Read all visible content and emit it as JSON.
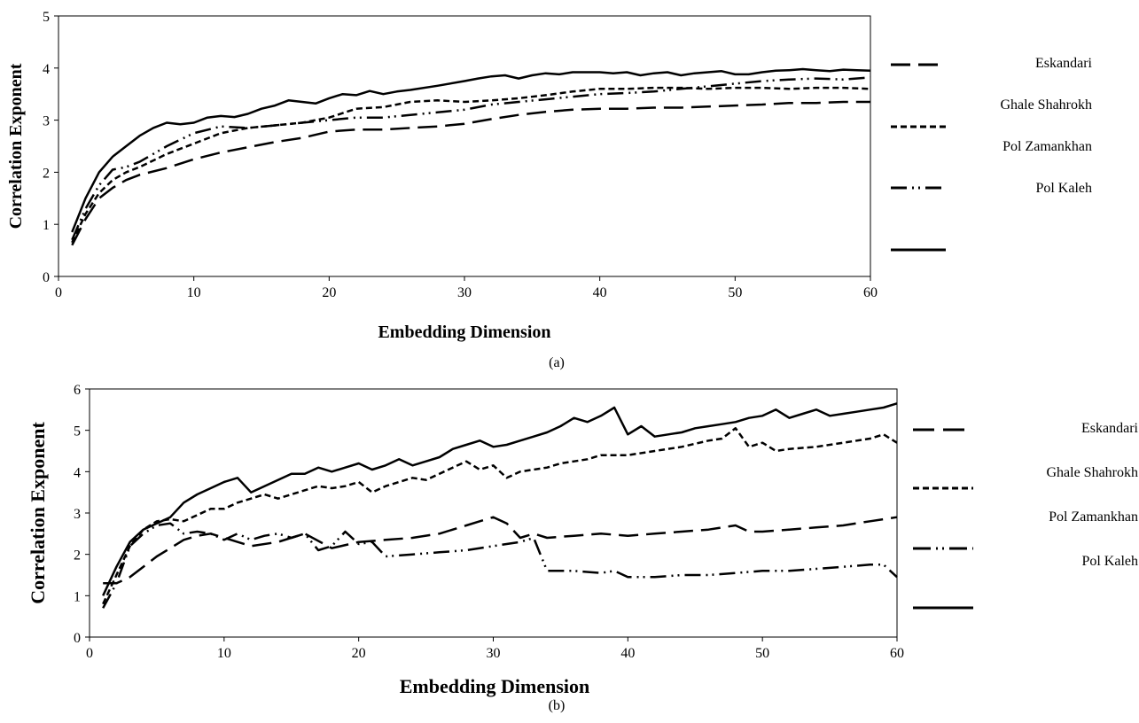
{
  "chart_data": [
    {
      "type": "line",
      "caption": "(a)",
      "xlabel": "Embedding Dimension",
      "ylabel": "Correlation Exponent",
      "xlim": [
        0,
        60
      ],
      "ylim": [
        0,
        5
      ],
      "xticks": [
        0,
        10,
        20,
        30,
        40,
        50,
        60
      ],
      "yticks": [
        0,
        1,
        2,
        3,
        4,
        5
      ],
      "grid": false,
      "legend_position": "right",
      "legend_labels": [
        "Eskandari",
        "Ghale Shahrokh",
        "Pol Zamankhan",
        "Pol Kaleh"
      ],
      "series": [
        {
          "style": "long-dash",
          "x": [
            1,
            2,
            3,
            4,
            5,
            6,
            8,
            10,
            12,
            14,
            16,
            18,
            20,
            22,
            24,
            26,
            28,
            30,
            32,
            34,
            36,
            38,
            40,
            42,
            44,
            46,
            48,
            50,
            52,
            54,
            56,
            58,
            60
          ],
          "y": [
            0.6,
            1.1,
            1.5,
            1.7,
            1.85,
            1.95,
            2.08,
            2.25,
            2.38,
            2.48,
            2.58,
            2.66,
            2.78,
            2.82,
            2.82,
            2.85,
            2.88,
            2.93,
            3.02,
            3.1,
            3.16,
            3.2,
            3.22,
            3.22,
            3.24,
            3.24,
            3.26,
            3.28,
            3.3,
            3.33,
            3.33,
            3.35,
            3.35
          ]
        },
        {
          "style": "short-dash",
          "x": [
            1,
            2,
            3,
            4,
            5,
            6,
            8,
            10,
            12,
            14,
            16,
            18,
            20,
            22,
            24,
            26,
            28,
            30,
            32,
            34,
            36,
            38,
            40,
            42,
            44,
            46,
            48,
            50,
            52,
            54,
            56,
            58,
            60
          ],
          "y": [
            0.65,
            1.2,
            1.6,
            1.85,
            2.0,
            2.1,
            2.35,
            2.55,
            2.75,
            2.85,
            2.9,
            2.95,
            3.05,
            3.22,
            3.25,
            3.35,
            3.38,
            3.35,
            3.38,
            3.42,
            3.48,
            3.55,
            3.6,
            3.6,
            3.62,
            3.62,
            3.6,
            3.62,
            3.62,
            3.6,
            3.62,
            3.62,
            3.6
          ]
        },
        {
          "style": "dash-dot-dot",
          "x": [
            1,
            2,
            3,
            4,
            5,
            6,
            7,
            8,
            10,
            12,
            14,
            16,
            18,
            20,
            22,
            24,
            26,
            28,
            30,
            32,
            34,
            36,
            38,
            40,
            42,
            44,
            46,
            48,
            50,
            52,
            54,
            56,
            58,
            60
          ],
          "y": [
            0.7,
            1.3,
            1.75,
            2.05,
            2.1,
            2.2,
            2.35,
            2.5,
            2.75,
            2.88,
            2.85,
            2.9,
            2.95,
            3.0,
            3.05,
            3.05,
            3.1,
            3.15,
            3.2,
            3.3,
            3.35,
            3.4,
            3.45,
            3.5,
            3.52,
            3.55,
            3.6,
            3.65,
            3.7,
            3.75,
            3.78,
            3.8,
            3.78,
            3.82
          ]
        },
        {
          "style": "solid",
          "x": [
            1,
            2,
            3,
            4,
            5,
            6,
            7,
            8,
            9,
            10,
            11,
            12,
            13,
            14,
            15,
            16,
            17,
            18,
            19,
            20,
            21,
            22,
            23,
            24,
            25,
            26,
            28,
            30,
            31,
            32,
            33,
            34,
            35,
            36,
            37,
            38,
            39,
            40,
            41,
            42,
            43,
            44,
            45,
            46,
            47,
            48,
            49,
            50,
            51,
            52,
            53,
            54,
            55,
            56,
            57,
            58,
            59,
            60
          ],
          "y": [
            0.85,
            1.5,
            2.0,
            2.3,
            2.5,
            2.7,
            2.85,
            2.95,
            2.92,
            2.95,
            3.05,
            3.08,
            3.06,
            3.12,
            3.22,
            3.28,
            3.38,
            3.35,
            3.32,
            3.42,
            3.5,
            3.48,
            3.56,
            3.5,
            3.55,
            3.58,
            3.66,
            3.75,
            3.8,
            3.84,
            3.86,
            3.8,
            3.86,
            3.9,
            3.88,
            3.92,
            3.92,
            3.92,
            3.9,
            3.92,
            3.86,
            3.9,
            3.92,
            3.86,
            3.9,
            3.92,
            3.94,
            3.88,
            3.88,
            3.92,
            3.95,
            3.96,
            3.98,
            3.96,
            3.94,
            3.97,
            3.96,
            3.95
          ]
        }
      ]
    },
    {
      "type": "line",
      "caption": "(b)",
      "xlabel": "Embedding Dimension",
      "ylabel": "Correlation Exponent",
      "xlim": [
        0,
        60
      ],
      "ylim": [
        0,
        6
      ],
      "xticks": [
        0,
        10,
        20,
        30,
        40,
        50,
        60
      ],
      "yticks": [
        0,
        1,
        2,
        3,
        4,
        5,
        6
      ],
      "grid": false,
      "legend_position": "right",
      "legend_labels": [
        "Eskandari",
        "Ghale Shahrokh",
        "Pol Zamankhan",
        "Pol Kaleh"
      ],
      "series": [
        {
          "style": "long-dash",
          "x": [
            1,
            2,
            3,
            4,
            5,
            6,
            7,
            8,
            9,
            10,
            12,
            14,
            16,
            18,
            20,
            22,
            24,
            26,
            28,
            29,
            30,
            31,
            32,
            33,
            34,
            36,
            38,
            40,
            42,
            44,
            46,
            48,
            49,
            50,
            52,
            54,
            56,
            58,
            60
          ],
          "y": [
            1.3,
            1.3,
            1.45,
            1.7,
            1.95,
            2.15,
            2.35,
            2.45,
            2.5,
            2.4,
            2.2,
            2.3,
            2.5,
            2.15,
            2.3,
            2.35,
            2.4,
            2.5,
            2.7,
            2.8,
            2.9,
            2.75,
            2.4,
            2.5,
            2.4,
            2.45,
            2.5,
            2.45,
            2.5,
            2.55,
            2.6,
            2.7,
            2.55,
            2.55,
            2.6,
            2.65,
            2.7,
            2.8,
            2.9
          ]
        },
        {
          "style": "short-dash",
          "x": [
            1,
            2,
            3,
            4,
            5,
            6,
            7,
            8,
            9,
            10,
            11,
            12,
            13,
            14,
            15,
            16,
            17,
            18,
            19,
            20,
            21,
            22,
            23,
            24,
            25,
            26,
            27,
            28,
            29,
            30,
            31,
            32,
            33,
            34,
            35,
            36,
            37,
            38,
            40,
            42,
            44,
            46,
            47,
            48,
            49,
            50,
            51,
            52,
            54,
            56,
            58,
            59,
            60
          ],
          "y": [
            0.8,
            1.5,
            2.2,
            2.6,
            2.8,
            2.85,
            2.8,
            2.95,
            3.1,
            3.1,
            3.25,
            3.35,
            3.45,
            3.35,
            3.45,
            3.55,
            3.65,
            3.6,
            3.65,
            3.75,
            3.5,
            3.65,
            3.75,
            3.85,
            3.8,
            3.95,
            4.1,
            4.25,
            4.05,
            4.15,
            3.85,
            4.0,
            4.05,
            4.1,
            4.2,
            4.25,
            4.3,
            4.4,
            4.4,
            4.5,
            4.6,
            4.75,
            4.8,
            5.05,
            4.6,
            4.7,
            4.5,
            4.55,
            4.6,
            4.7,
            4.8,
            4.9,
            4.7
          ]
        },
        {
          "style": "dash-dot-dot",
          "x": [
            1,
            2,
            3,
            4,
            5,
            6,
            7,
            8,
            9,
            10,
            11,
            12,
            13,
            14,
            15,
            16,
            17,
            18,
            19,
            20,
            21,
            22,
            24,
            26,
            28,
            30,
            32,
            33,
            34,
            35,
            36,
            38,
            39,
            40,
            42,
            44,
            46,
            48,
            50,
            52,
            54,
            56,
            58,
            59,
            60
          ],
          "y": [
            0.7,
            1.3,
            2.2,
            2.5,
            2.7,
            2.75,
            2.5,
            2.55,
            2.5,
            2.35,
            2.5,
            2.35,
            2.45,
            2.5,
            2.4,
            2.5,
            2.1,
            2.2,
            2.55,
            2.25,
            2.3,
            1.95,
            2.0,
            2.05,
            2.1,
            2.2,
            2.3,
            2.4,
            1.6,
            1.6,
            1.6,
            1.55,
            1.6,
            1.45,
            1.45,
            1.5,
            1.5,
            1.55,
            1.6,
            1.6,
            1.65,
            1.7,
            1.75,
            1.75,
            1.45
          ]
        },
        {
          "style": "solid",
          "x": [
            1,
            2,
            3,
            4,
            5,
            6,
            7,
            8,
            9,
            10,
            11,
            12,
            13,
            14,
            15,
            16,
            17,
            18,
            19,
            20,
            21,
            22,
            23,
            24,
            25,
            26,
            27,
            28,
            29,
            30,
            31,
            32,
            33,
            34,
            35,
            36,
            37,
            38,
            39,
            40,
            41,
            42,
            43,
            44,
            45,
            46,
            47,
            48,
            49,
            50,
            51,
            52,
            53,
            54,
            55,
            56,
            57,
            58,
            59,
            60
          ],
          "y": [
            1.0,
            1.7,
            2.3,
            2.6,
            2.75,
            2.9,
            3.25,
            3.45,
            3.6,
            3.75,
            3.85,
            3.5,
            3.65,
            3.8,
            3.95,
            3.95,
            4.1,
            4.0,
            4.1,
            4.2,
            4.05,
            4.15,
            4.3,
            4.15,
            4.25,
            4.35,
            4.55,
            4.65,
            4.75,
            4.6,
            4.65,
            4.75,
            4.85,
            4.95,
            5.1,
            5.3,
            5.2,
            5.35,
            5.55,
            4.9,
            5.1,
            4.85,
            4.9,
            4.95,
            5.05,
            5.1,
            5.15,
            5.2,
            5.3,
            5.35,
            5.5,
            5.3,
            5.4,
            5.5,
            5.35,
            5.4,
            5.45,
            5.5,
            5.55,
            5.65
          ]
        }
      ]
    }
  ]
}
